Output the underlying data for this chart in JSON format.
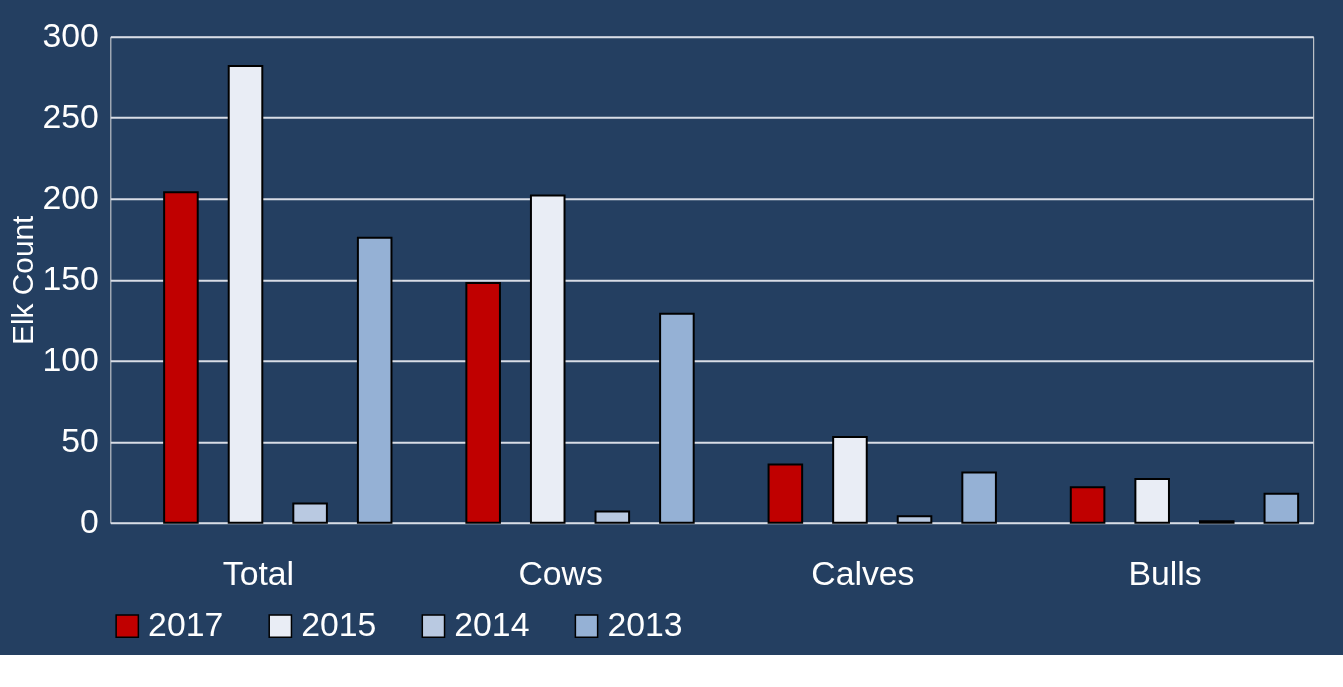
{
  "chart_data": {
    "type": "bar",
    "ylabel": "Elk Count",
    "categories": [
      "Total",
      "Cows",
      "Calves",
      "Bulls"
    ],
    "series": [
      {
        "name": "2017",
        "color": "#c00000",
        "values": [
          204,
          148,
          36,
          22
        ]
      },
      {
        "name": "2015",
        "color": "#e9edf5",
        "values": [
          282,
          202,
          53,
          27
        ]
      },
      {
        "name": "2014",
        "color": "#b9c9e1",
        "values": [
          12,
          7,
          4,
          1
        ]
      },
      {
        "name": "2013",
        "color": "#95b1d5",
        "values": [
          176,
          129,
          31,
          18
        ]
      }
    ],
    "ylim": [
      0,
      300
    ],
    "yticks": [
      0,
      50,
      100,
      150,
      200,
      250,
      300
    ],
    "grid": "y",
    "legend": "bottom"
  }
}
